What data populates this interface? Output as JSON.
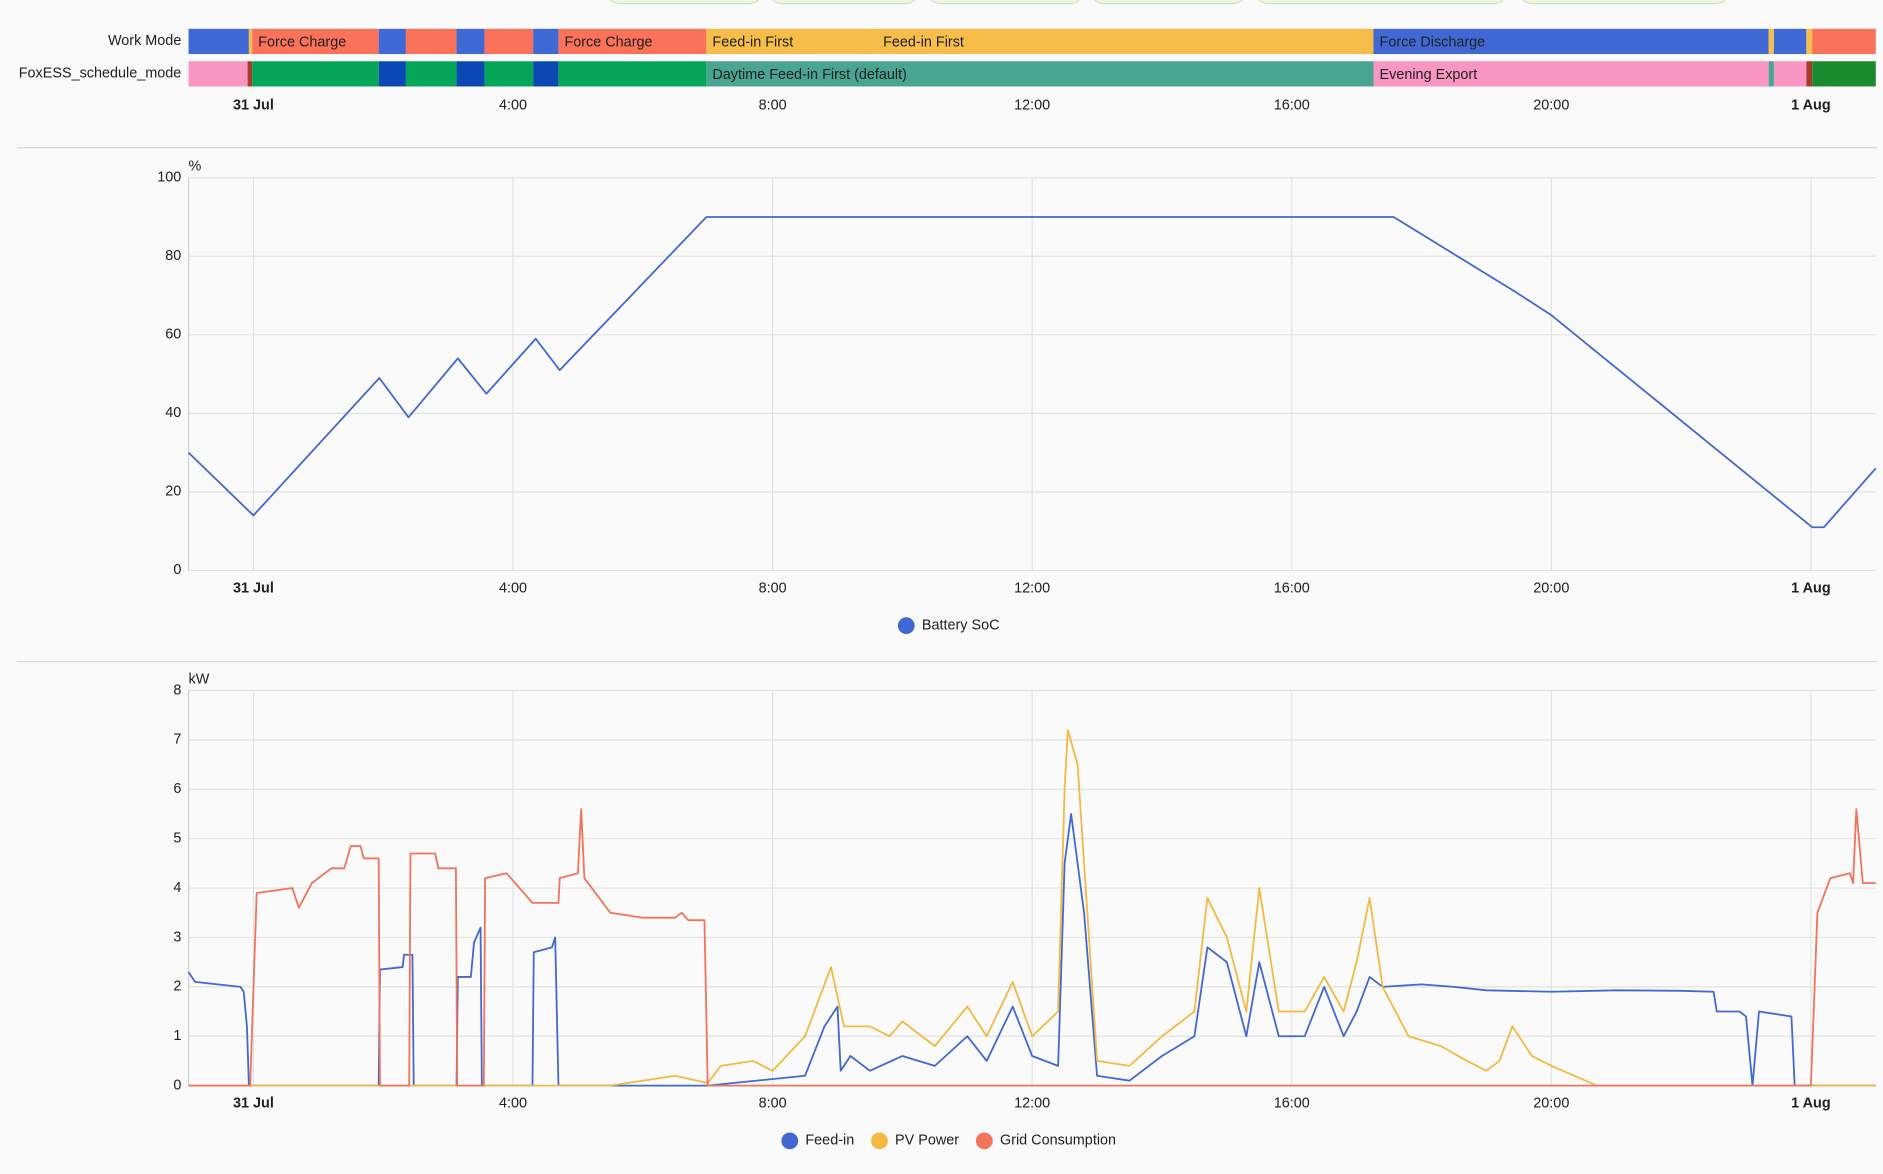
{
  "timeline": {
    "xlim": [
      -1,
      25
    ],
    "xticks": [
      {
        "value": 0,
        "label": "31 Jul"
      },
      {
        "value": 4,
        "label": "4:00"
      },
      {
        "value": 8,
        "label": "8:00"
      },
      {
        "value": 12,
        "label": "12:00"
      },
      {
        "value": 16,
        "label": "16:00"
      },
      {
        "value": 20,
        "label": "20:00"
      },
      {
        "value": 24,
        "label": "1 Aug"
      }
    ],
    "rows": [
      {
        "label": "Work Mode",
        "segments": [
          {
            "start": -1,
            "end": -0.07,
            "color": "#4169d6"
          },
          {
            "start": -0.07,
            "end": -0.02,
            "color": "#f6bd4b"
          },
          {
            "start": -0.02,
            "end": 1.93,
            "color": "#fb725a",
            "label": "Force Charge"
          },
          {
            "start": 1.93,
            "end": 2.35,
            "color": "#4169d6"
          },
          {
            "start": 2.35,
            "end": 3.13,
            "color": "#fb725a"
          },
          {
            "start": 3.13,
            "end": 3.56,
            "color": "#4169d6"
          },
          {
            "start": 3.56,
            "end": 4.31,
            "color": "#fb725a"
          },
          {
            "start": 4.31,
            "end": 4.7,
            "color": "#4169d6"
          },
          {
            "start": 4.7,
            "end": 6.98,
            "color": "#fb725a",
            "label": "Force Charge"
          },
          {
            "start": 6.98,
            "end": 9.61,
            "color": "#f6bd4b",
            "label": "Feed-in First"
          },
          {
            "start": 9.61,
            "end": 17.26,
            "color": "#f6bd4b",
            "label": "Feed-in First"
          },
          {
            "start": 17.26,
            "end": 23.35,
            "color": "#4169d6",
            "label": "Force Discharge"
          },
          {
            "start": 23.35,
            "end": 23.43,
            "color": "#f6bd4b"
          },
          {
            "start": 23.43,
            "end": 23.93,
            "color": "#4169d6"
          },
          {
            "start": 23.93,
            "end": 24.02,
            "color": "#f6bd4b"
          },
          {
            "start": 24.02,
            "end": 25,
            "color": "#fb725a"
          }
        ]
      },
      {
        "label": "FoxESS_schedule_mode",
        "segments": [
          {
            "start": -1,
            "end": -0.09,
            "color": "#f996c3"
          },
          {
            "start": -0.09,
            "end": -0.02,
            "color": "#a83b2c"
          },
          {
            "start": -0.02,
            "end": 1.93,
            "color": "#05a65a"
          },
          {
            "start": 1.93,
            "end": 2.35,
            "color": "#0a48b4"
          },
          {
            "start": 2.35,
            "end": 3.13,
            "color": "#05a65a"
          },
          {
            "start": 3.13,
            "end": 3.56,
            "color": "#0a48b4"
          },
          {
            "start": 3.56,
            "end": 4.31,
            "color": "#05a65a"
          },
          {
            "start": 4.31,
            "end": 4.7,
            "color": "#0a48b4"
          },
          {
            "start": 4.7,
            "end": 6.98,
            "color": "#05a65a"
          },
          {
            "start": 6.98,
            "end": 17.26,
            "color": "#49a491",
            "label": "Daytime Feed-in First (default)"
          },
          {
            "start": 17.26,
            "end": 23.35,
            "color": "#f996c3",
            "label": "Evening Export"
          },
          {
            "start": 23.35,
            "end": 23.43,
            "color": "#49a491"
          },
          {
            "start": 23.43,
            "end": 23.93,
            "color": "#f996c3"
          },
          {
            "start": 23.93,
            "end": 24.02,
            "color": "#a83b2c"
          },
          {
            "start": 24.02,
            "end": 25,
            "color": "#1a8a2e"
          }
        ]
      }
    ]
  },
  "chart_data": [
    {
      "type": "line",
      "ylabel": "%",
      "xlim": [
        -1,
        25
      ],
      "ylim": [
        0,
        100
      ],
      "yticks": [
        0,
        20,
        40,
        60,
        80,
        100
      ],
      "xticks": [
        {
          "value": 0,
          "label": "31 Jul"
        },
        {
          "value": 4,
          "label": "4:00"
        },
        {
          "value": 8,
          "label": "8:00"
        },
        {
          "value": 12,
          "label": "12:00"
        },
        {
          "value": 16,
          "label": "16:00"
        },
        {
          "value": 20,
          "label": "20:00"
        },
        {
          "value": 24,
          "label": "1 Aug"
        }
      ],
      "grid": true,
      "series": [
        {
          "name": "Battery SoC",
          "color": "#4269d3",
          "x": [
            -1,
            0,
            1.94,
            2.39,
            3.15,
            3.59,
            4.35,
            4.72,
            6.98,
            17.57,
            19.44,
            20,
            24.02,
            24.2,
            25
          ],
          "values": [
            30,
            14,
            49,
            39,
            54,
            45,
            59,
            51,
            90,
            90,
            71,
            65,
            11,
            11,
            26
          ]
        }
      ]
    },
    {
      "type": "line",
      "ylabel": "kW",
      "xlim": [
        -1,
        25
      ],
      "ylim": [
        0,
        8
      ],
      "yticks": [
        0,
        1,
        2,
        3,
        4,
        5,
        6,
        7,
        8
      ],
      "xticks": [
        {
          "value": 0,
          "label": "31 Jul"
        },
        {
          "value": 4,
          "label": "4:00"
        },
        {
          "value": 8,
          "label": "8:00"
        },
        {
          "value": 12,
          "label": "12:00"
        },
        {
          "value": 16,
          "label": "16:00"
        },
        {
          "value": 20,
          "label": "20:00"
        },
        {
          "value": 24,
          "label": "1 Aug"
        }
      ],
      "grid": true,
      "series": [
        {
          "name": "Feed-in",
          "color": "#4269d3",
          "x": [
            -1,
            -0.9,
            -0.2,
            -0.15,
            -0.1,
            -0.07,
            1.93,
            1.95,
            2.3,
            2.32,
            2.45,
            2.47,
            3.13,
            3.15,
            3.35,
            3.4,
            3.5,
            3.52,
            4.3,
            4.32,
            4.6,
            4.65,
            4.7,
            7,
            8.5,
            8.8,
            9,
            9.05,
            9.2,
            9.5,
            10,
            10.5,
            11,
            11.3,
            11.7,
            12,
            12.4,
            12.5,
            12.6,
            12.8,
            13,
            13.5,
            14,
            14.5,
            14.7,
            15,
            15.3,
            15.5,
            15.8,
            16.2,
            16.5,
            16.8,
            17,
            17.2,
            17.4,
            18,
            18.5,
            19,
            20,
            21,
            22,
            22.5,
            22.55,
            22.9,
            23,
            23.1,
            23.2,
            23.7,
            23.75,
            24,
            25
          ],
          "values": [
            2.3,
            2.1,
            2,
            1.9,
            1.2,
            0,
            0,
            2.35,
            2.4,
            2.65,
            2.65,
            0,
            0,
            2.2,
            2.2,
            2.9,
            3.2,
            0,
            0,
            2.7,
            2.8,
            3,
            0,
            0,
            0.2,
            1.2,
            1.6,
            0.3,
            0.6,
            0.3,
            0.6,
            0.4,
            1,
            0.5,
            1.6,
            0.6,
            0.4,
            4.5,
            5.5,
            3.5,
            0.2,
            0.1,
            0.6,
            1,
            2.8,
            2.5,
            1,
            2.5,
            1,
            1,
            2,
            1,
            1.5,
            2.2,
            2,
            2.05,
            2,
            1.93,
            1.9,
            1.93,
            1.92,
            1.9,
            1.5,
            1.5,
            1.4,
            0,
            1.5,
            1.4,
            0,
            0,
            0
          ]
        },
        {
          "name": "PV Power",
          "color": "#f4b942",
          "x": [
            -1,
            5.5,
            6.5,
            7,
            7.2,
            7.7,
            8,
            8.5,
            8.9,
            9.1,
            9.5,
            9.8,
            10,
            10.5,
            11,
            11.3,
            11.7,
            12,
            12.4,
            12.5,
            12.55,
            12.7,
            12.8,
            13,
            13.5,
            14,
            14.5,
            14.7,
            15,
            15.3,
            15.5,
            15.8,
            16.2,
            16.5,
            16.8,
            17,
            17.2,
            17.4,
            17.8,
            18.3,
            18.7,
            19,
            19.2,
            19.4,
            19.7,
            20,
            20.7,
            25
          ],
          "values": [
            0,
            0,
            0.2,
            0.05,
            0.4,
            0.5,
            0.3,
            1,
            2.4,
            1.2,
            1.2,
            1,
            1.3,
            0.8,
            1.6,
            1,
            2.1,
            1,
            1.5,
            6,
            7.2,
            6.5,
            4.5,
            0.5,
            0.4,
            1,
            1.5,
            3.8,
            3,
            1.5,
            4,
            1.5,
            1.5,
            2.2,
            1.5,
            2.5,
            3.8,
            2,
            1,
            0.8,
            0.5,
            0.3,
            0.5,
            1.2,
            0.6,
            0.4,
            0,
            0
          ]
        },
        {
          "name": "Grid Consumption",
          "color": "#f3735b",
          "x": [
            -1,
            -0.05,
            0.05,
            0.6,
            0.7,
            0.9,
            1.2,
            1.4,
            1.5,
            1.65,
            1.7,
            1.93,
            1.95,
            2.4,
            2.42,
            2.8,
            2.85,
            3.12,
            3.14,
            3.55,
            3.57,
            3.9,
            4.3,
            4.7,
            4.72,
            5,
            5.05,
            5.1,
            5.5,
            6,
            6.5,
            6.6,
            6.7,
            6.95,
            7,
            24,
            24.1,
            24.3,
            24.6,
            24.65,
            24.7,
            24.8,
            25
          ],
          "values": [
            0,
            0,
            3.9,
            4,
            3.6,
            4.1,
            4.4,
            4.4,
            4.85,
            4.85,
            4.6,
            4.6,
            0,
            0,
            4.7,
            4.7,
            4.4,
            4.4,
            0,
            0,
            4.2,
            4.3,
            3.7,
            3.7,
            4.2,
            4.3,
            5.6,
            4.2,
            3.5,
            3.4,
            3.4,
            3.5,
            3.35,
            3.35,
            0,
            0,
            3.5,
            4.2,
            4.3,
            4.1,
            5.6,
            4.1,
            4.1
          ]
        }
      ]
    }
  ]
}
